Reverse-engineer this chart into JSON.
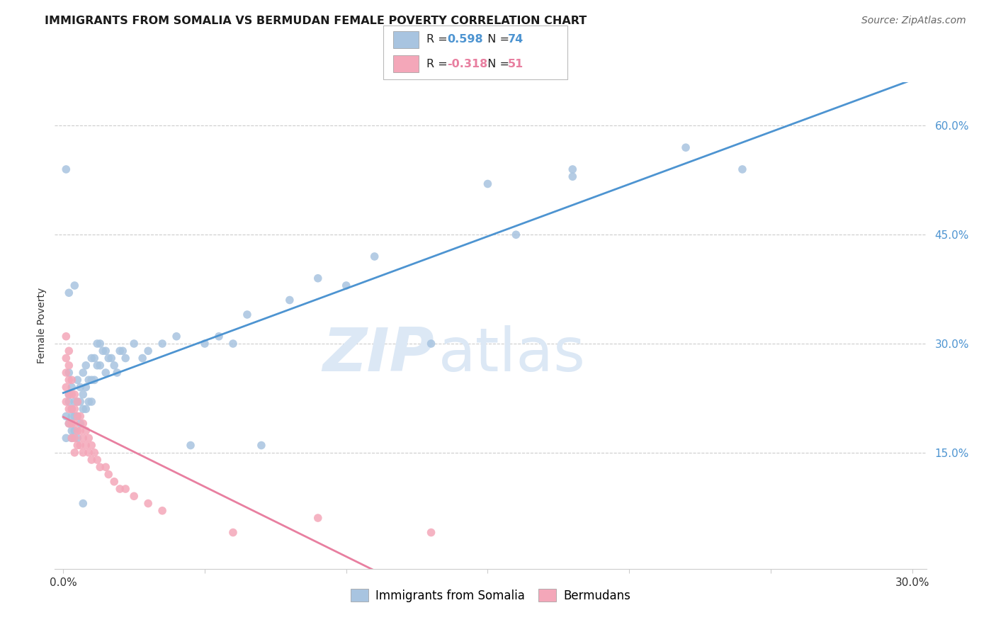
{
  "title": "IMMIGRANTS FROM SOMALIA VS BERMUDAN FEMALE POVERTY CORRELATION CHART",
  "source": "Source: ZipAtlas.com",
  "ylabel_label": "Female Poverty",
  "xlim": [
    0.0,
    0.3
  ],
  "ylim": [
    0.0,
    0.65
  ],
  "y_tick_vals": [
    0.15,
    0.3,
    0.45,
    0.6
  ],
  "y_tick_labels": [
    "15.0%",
    "30.0%",
    "45.0%",
    "60.0%"
  ],
  "x_tick_vals": [
    0.0,
    0.05,
    0.1,
    0.15,
    0.2,
    0.25,
    0.3
  ],
  "x_tick_labels": [
    "0.0%",
    "",
    "",
    "",
    "",
    "",
    "30.0%"
  ],
  "legend_labels": [
    "Immigrants from Somalia",
    "Bermudans"
  ],
  "r_somalia": 0.598,
  "n_somalia": 74,
  "r_bermuda": -0.318,
  "n_bermuda": 51,
  "color_somalia": "#a8c4e0",
  "color_bermuda": "#f4a7b9",
  "line_color_somalia": "#4d94d1",
  "line_color_bermuda": "#e87fa0",
  "watermark_zip": "ZIP",
  "watermark_atlas": "atlas",
  "watermark_color": "#dce8f5",
  "background_color": "#ffffff",
  "somalia_x": [
    0.001,
    0.001,
    0.001,
    0.002,
    0.002,
    0.002,
    0.002,
    0.003,
    0.003,
    0.003,
    0.003,
    0.003,
    0.004,
    0.004,
    0.004,
    0.005,
    0.005,
    0.005,
    0.005,
    0.006,
    0.006,
    0.006,
    0.007,
    0.007,
    0.007,
    0.008,
    0.008,
    0.008,
    0.009,
    0.009,
    0.01,
    0.01,
    0.01,
    0.011,
    0.011,
    0.012,
    0.012,
    0.013,
    0.013,
    0.014,
    0.015,
    0.015,
    0.016,
    0.017,
    0.018,
    0.019,
    0.02,
    0.021,
    0.022,
    0.025,
    0.028,
    0.03,
    0.035,
    0.04,
    0.045,
    0.05,
    0.055,
    0.06,
    0.065,
    0.07,
    0.08,
    0.09,
    0.1,
    0.11,
    0.13,
    0.15,
    0.16,
    0.18,
    0.22,
    0.24,
    0.002,
    0.004,
    0.007,
    0.18
  ],
  "somalia_y": [
    0.54,
    0.2,
    0.17,
    0.26,
    0.23,
    0.22,
    0.19,
    0.24,
    0.21,
    0.2,
    0.18,
    0.17,
    0.22,
    0.2,
    0.18,
    0.25,
    0.22,
    0.2,
    0.17,
    0.24,
    0.22,
    0.19,
    0.26,
    0.23,
    0.21,
    0.27,
    0.24,
    0.21,
    0.25,
    0.22,
    0.28,
    0.25,
    0.22,
    0.28,
    0.25,
    0.3,
    0.27,
    0.3,
    0.27,
    0.29,
    0.29,
    0.26,
    0.28,
    0.28,
    0.27,
    0.26,
    0.29,
    0.29,
    0.28,
    0.3,
    0.28,
    0.29,
    0.3,
    0.31,
    0.16,
    0.3,
    0.31,
    0.3,
    0.34,
    0.16,
    0.36,
    0.39,
    0.38,
    0.42,
    0.3,
    0.52,
    0.45,
    0.54,
    0.57,
    0.54,
    0.37,
    0.38,
    0.08,
    0.53
  ],
  "bermuda_x": [
    0.001,
    0.001,
    0.001,
    0.001,
    0.001,
    0.002,
    0.002,
    0.002,
    0.002,
    0.002,
    0.002,
    0.003,
    0.003,
    0.003,
    0.003,
    0.003,
    0.004,
    0.004,
    0.004,
    0.004,
    0.004,
    0.005,
    0.005,
    0.005,
    0.005,
    0.006,
    0.006,
    0.006,
    0.007,
    0.007,
    0.007,
    0.008,
    0.008,
    0.009,
    0.009,
    0.01,
    0.01,
    0.011,
    0.012,
    0.013,
    0.015,
    0.016,
    0.018,
    0.02,
    0.022,
    0.025,
    0.03,
    0.035,
    0.06,
    0.09,
    0.13
  ],
  "bermuda_y": [
    0.31,
    0.28,
    0.26,
    0.24,
    0.22,
    0.29,
    0.27,
    0.25,
    0.23,
    0.21,
    0.19,
    0.25,
    0.23,
    0.21,
    0.19,
    0.17,
    0.23,
    0.21,
    0.19,
    0.17,
    0.15,
    0.22,
    0.2,
    0.18,
    0.16,
    0.2,
    0.18,
    0.16,
    0.19,
    0.17,
    0.15,
    0.18,
    0.16,
    0.17,
    0.15,
    0.16,
    0.14,
    0.15,
    0.14,
    0.13,
    0.13,
    0.12,
    0.11,
    0.1,
    0.1,
    0.09,
    0.08,
    0.07,
    0.04,
    0.06,
    0.04
  ]
}
